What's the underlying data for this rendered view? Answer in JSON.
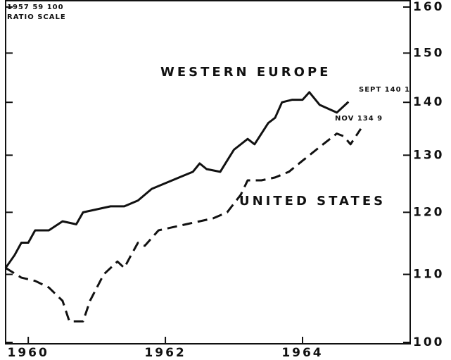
{
  "chart_data": {
    "type": "line",
    "annotations": [
      "1957 59 100",
      "RATIO SCALE",
      "WESTERN EUROPE",
      "UNITED STATES",
      "SEPT 140 1",
      "NOV 134 9"
    ],
    "log_scale": true,
    "ylim": [
      100,
      160
    ],
    "yticks": [
      100,
      110,
      120,
      130,
      140,
      150,
      160
    ],
    "xlim": [
      1959.67,
      1965.57
    ],
    "xticks": [
      1960,
      1962,
      1964
    ],
    "series": [
      {
        "name": "WESTERN EUROPE",
        "color": "#111111",
        "line_style": "solid",
        "x": [
          1959.67,
          1959.8,
          1959.9,
          1960.0,
          1960.1,
          1960.3,
          1960.5,
          1960.7,
          1960.8,
          1961.0,
          1961.2,
          1961.4,
          1961.6,
          1961.8,
          1962.0,
          1962.2,
          1962.4,
          1962.5,
          1962.6,
          1962.8,
          1962.9,
          1963.0,
          1963.2,
          1963.3,
          1963.5,
          1963.6,
          1963.7,
          1963.85,
          1964.0,
          1964.1,
          1964.25,
          1964.5,
          1964.67
        ],
        "values": [
          111,
          113,
          115,
          115,
          117,
          117,
          118.5,
          118,
          120,
          120.5,
          121,
          121,
          122,
          124,
          125,
          126,
          127,
          128.5,
          127.5,
          127,
          129,
          131,
          133,
          132,
          136,
          137,
          140,
          140.5,
          140.5,
          142,
          139.5,
          138,
          140.1
        ]
      },
      {
        "name": "UNITED STATES",
        "color": "#111111",
        "line_style": "dashed",
        "x": [
          1959.67,
          1959.9,
          1960.1,
          1960.3,
          1960.5,
          1960.6,
          1960.8,
          1960.9,
          1961.1,
          1961.3,
          1961.4,
          1961.5,
          1961.6,
          1961.7,
          1961.9,
          1962.1,
          1962.3,
          1962.5,
          1962.7,
          1962.9,
          1963.1,
          1963.2,
          1963.4,
          1963.6,
          1963.8,
          1964.0,
          1964.2,
          1964.4,
          1964.5,
          1964.6,
          1964.7,
          1964.85
        ],
        "values": [
          111,
          109.5,
          109,
          108,
          106,
          103,
          103,
          106,
          110,
          112,
          111,
          113,
          115,
          114.5,
          117,
          117.5,
          118,
          118.5,
          119,
          120,
          123,
          125.5,
          125.5,
          126,
          127,
          129,
          131,
          133,
          134,
          133.5,
          132,
          134.9
        ]
      }
    ]
  }
}
